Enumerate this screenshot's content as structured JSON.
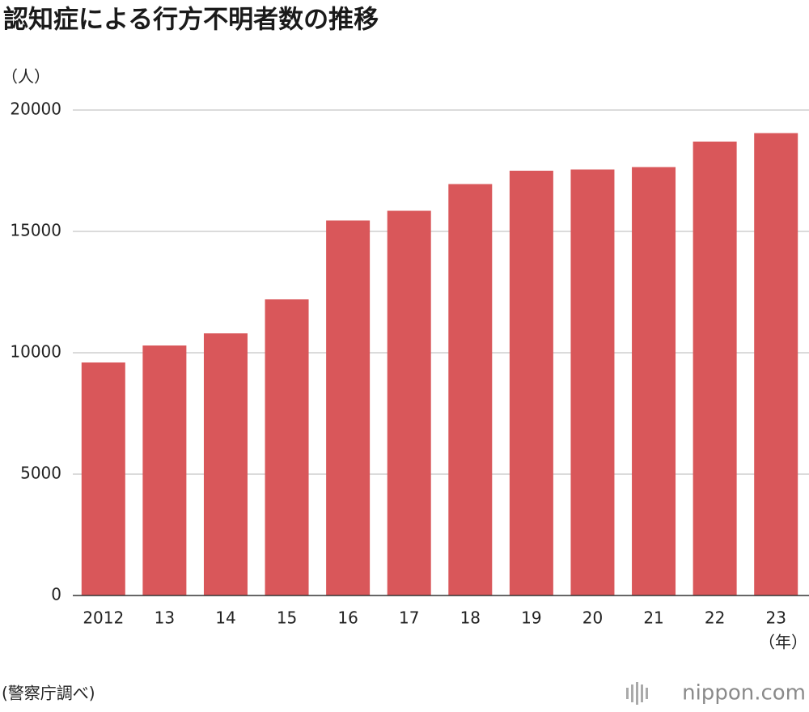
{
  "chart_data": {
    "type": "bar",
    "title": "認知症による行方不明者数の推移",
    "y_unit": "（人）",
    "x_unit": "（年）",
    "source": "(警察庁調べ)",
    "logo": "nippon.com",
    "categories": [
      "2012",
      "13",
      "14",
      "15",
      "16",
      "17",
      "18",
      "19",
      "20",
      "21",
      "22",
      "23"
    ],
    "values": [
      9600,
      10300,
      10800,
      12200,
      15450,
      15850,
      16950,
      17500,
      17550,
      17650,
      18700,
      19050
    ],
    "color": "#d9575a",
    "ylim": [
      0,
      20000
    ],
    "yticks": [
      0,
      5000,
      10000,
      15000,
      20000
    ],
    "grid": true
  }
}
